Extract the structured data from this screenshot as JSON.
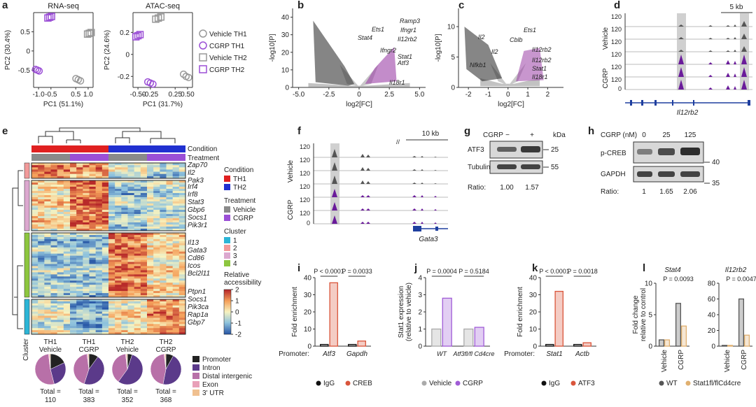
{
  "panel_letters": [
    "a",
    "b",
    "c",
    "d",
    "e",
    "f",
    "g",
    "h",
    "i",
    "j",
    "k",
    "l"
  ],
  "a": {
    "legend": [
      "Vehicle TH1",
      "CGRP TH1",
      "Vehicle TH2",
      "CGRP TH2"
    ],
    "markers": [
      {
        "shape": "circle",
        "color": "#999999"
      },
      {
        "shape": "circle",
        "color": "#9b4fd6"
      },
      {
        "shape": "square",
        "color": "#999999"
      },
      {
        "shape": "square",
        "color": "#9b4fd6"
      }
    ],
    "plots": [
      {
        "title": "RNA-seq",
        "xlabel": "PC1 (51.1%)",
        "ylabel": "PC2 (30.4%)",
        "xlim": [
          -1.2,
          1.2
        ],
        "ylim": [
          -0.95,
          1.0
        ],
        "xticks": [
          {
            "value": -1,
            "label": "-1.0"
          },
          -0.5,
          0.5,
          {
            "value": 1,
            "label": "1.0"
          }
        ],
        "yticks": [
          -0.5,
          0,
          0.5
        ],
        "groups": [
          {
            "x": [
              0.55,
              0.6,
              0.65
            ],
            "y": [
              -0.72,
              -0.75,
              -0.78
            ]
          },
          {
            "x": [
              -1.08,
              -1.05,
              -1.02
            ],
            "y": [
              -0.48,
              -0.5,
              -0.52
            ]
          },
          {
            "x": [
              1.02,
              1.05,
              1.08
            ],
            "y": [
              0.44,
              0.46,
              0.48
            ]
          },
          {
            "x": [
              -0.58,
              -0.55,
              -0.52
            ],
            "y": [
              0.86,
              0.88,
              0.9
            ]
          }
        ]
      },
      {
        "title": "ATAC-seq",
        "xlabel": "PC1 (31.7%)",
        "ylabel": "PC2 (24.6%)",
        "xlim": [
          -0.6,
          0.6
        ],
        "ylim": [
          -0.3,
          0.38
        ],
        "xticks": [
          {
            "value": -0.5,
            "label": "-0.50"
          },
          -0.25,
          0.25,
          {
            "value": 0.5,
            "label": "0.50"
          }
        ],
        "yticks": [
          -0.2,
          0,
          0.2
        ],
        "groups": [
          {
            "x": [
              0.44,
              0.47,
              0.5
            ],
            "y": [
              -0.18,
              -0.2,
              -0.21
            ]
          },
          {
            "x": [
              -0.28,
              -0.25,
              -0.22
            ],
            "y": [
              -0.25,
              -0.26,
              -0.27
            ]
          },
          {
            "x": [
              -0.12,
              -0.09,
              -0.06
            ],
            "y": [
              0.32,
              0.33,
              0.34
            ]
          },
          {
            "x": [
              -0.52,
              -0.5,
              -0.48
            ],
            "y": [
              0.16,
              0.17,
              0.18
            ]
          }
        ]
      }
    ]
  },
  "b": {
    "xlabel": "log2[FC]",
    "ylabel": "-log10[P]",
    "xlim": [
      -5.5,
      5.5
    ],
    "ylim": [
      0,
      45
    ],
    "xticks": [
      {
        "value": -5,
        "label": "-5.0"
      },
      -2.5,
      0,
      2.5,
      {
        "value": 5,
        "label": "5.0"
      }
    ],
    "yticks": [
      0,
      10,
      20,
      30,
      40
    ],
    "genes": [
      "Ramp3",
      "Ets1",
      "Ifngr1",
      "Stat4",
      "Il12rb2",
      "Ifngr2",
      "Stat1",
      "Atf3",
      "Il18r1"
    ]
  },
  "c": {
    "xlabel": "log2[FC]",
    "ylabel": "-log10[P]",
    "xlim": [
      -2.5,
      2.8
    ],
    "ylim": [
      0,
      13
    ],
    "xticks": [
      -2,
      -1,
      0,
      1,
      2
    ],
    "yticks": [
      0,
      5,
      10
    ],
    "genes": [
      "Il2",
      "Ets1",
      "Cblb",
      "Il2",
      "Nfkb1",
      "Il12rb2",
      "Il12rb2",
      "Stat1",
      "Il18r1"
    ]
  },
  "d": {
    "scale": "5 kb",
    "track_max": 120,
    "track_min": 0,
    "groups": [
      "Vehicle",
      "CGRP"
    ],
    "gene": "Il12rb2"
  },
  "e": {
    "bars": [
      "Condition",
      "Treatment"
    ],
    "genes": [
      [
        "Zap70",
        "Il2",
        "Pak3"
      ],
      [
        "Irf4",
        "Irf8",
        "Stat3",
        "Gbp6",
        "Socs1",
        "Pik3r1"
      ],
      [
        "Il13",
        "Gata3",
        "Cd86",
        "Icos",
        "Bcl2l11"
      ],
      [
        "Ptpn1",
        "Socs1",
        "Pik3ca",
        "Rap1a",
        "Gbp7"
      ]
    ],
    "condition_title": "Condition",
    "conditions": [
      {
        "name": "TH1",
        "color": "#e02020"
      },
      {
        "name": "TH2",
        "color": "#2030d0"
      }
    ],
    "treatment_title": "Treatment",
    "treatments": [
      {
        "name": "Vehicle",
        "color": "#8a8a8a"
      },
      {
        "name": "CGRP",
        "color": "#9b4fd6"
      }
    ],
    "cluster_title": "Cluster",
    "clusters": [
      {
        "name": "1",
        "color": "#2cb5d6"
      },
      {
        "name": "2",
        "color": "#f29a9a"
      },
      {
        "name": "3",
        "color": "#dca8cf"
      },
      {
        "name": "4",
        "color": "#8dc63f"
      }
    ],
    "colorbar_title": [
      "Relative",
      "accessibility"
    ],
    "colorbar_ticks": [
      2,
      1,
      0,
      -1,
      -2
    ],
    "columns": [
      [
        "TH1",
        "Vehicle"
      ],
      [
        "TH1",
        "CGRP"
      ],
      [
        "TH2",
        "Vehicle"
      ],
      [
        "TH2",
        "CGRP"
      ]
    ],
    "sidebar_label": "Cluster",
    "pie_legend": [
      {
        "name": "Promoter",
        "color": "#222222"
      },
      {
        "name": "Intron",
        "color": "#5b3a8a"
      },
      {
        "name": "Distal intergenic",
        "color": "#b870a8"
      },
      {
        "name": "Exon",
        "color": "#e8a0b8"
      },
      {
        "name": "3' UTR",
        "color": "#f0c090"
      }
    ],
    "pie_values": [
      [
        18,
        28,
        52,
        1,
        1
      ],
      [
        10,
        45,
        43,
        1,
        1
      ],
      [
        5,
        55,
        38,
        1,
        1
      ],
      [
        8,
        45,
        45,
        1,
        1
      ]
    ],
    "total_label": "Total =",
    "totals": [
      110,
      383,
      352,
      368
    ]
  },
  "f": {
    "scale": "10 kb",
    "track_max": 120,
    "track_min": 0,
    "groups": [
      "Vehicle",
      "CGRP"
    ],
    "gene": "Gata3"
  },
  "g": {
    "treatment": "CGRP",
    "lanes": [
      "−",
      "+"
    ],
    "unit": "kDa",
    "bands": [
      {
        "name": "ATF3",
        "marker": 25
      },
      {
        "name": "Tubulin",
        "marker": 55
      }
    ],
    "ratio_label": "Ratio:",
    "ratios": [
      "1.00",
      "1.57"
    ]
  },
  "h": {
    "treatment": "CGRP (nM)",
    "lanes": [
      0,
      25,
      125
    ],
    "bands": [
      {
        "name": "p-CREB",
        "marker": 40
      },
      {
        "name": "GAPDH",
        "marker": 35
      }
    ],
    "ratio_label": "Ratio:",
    "ratios": [
      "1",
      "1.65",
      "2.06"
    ]
  },
  "i": {
    "ylabel": "Fold enrichment",
    "ylim": [
      0,
      40
    ],
    "yticks": [
      0,
      10,
      20,
      30,
      40
    ],
    "prefix": "Promoter:",
    "categories": [
      "Atf3",
      "Gapdh"
    ],
    "series": [
      {
        "name": "IgG",
        "color": "#111111",
        "values": [
          1,
          1
        ]
      },
      {
        "name": "CREB",
        "color": "#d9553b",
        "values": [
          37,
          3
        ]
      }
    ],
    "pvalues": [
      "P < 0.0001",
      "P = 0.0033"
    ]
  },
  "j": {
    "ylabel": [
      "Stat1 expression",
      "(relative to vehicle)"
    ],
    "ylim": [
      0,
      4
    ],
    "yticks": [
      0,
      1,
      2,
      3,
      4
    ],
    "categories": [
      "WT",
      "Atf3fl/fl Cd4cre"
    ],
    "series": [
      {
        "name": "Vehicle",
        "color": "#aaaaaa",
        "values": [
          1,
          1
        ]
      },
      {
        "name": "CGRP",
        "color": "#a05cd6",
        "values": [
          2.8,
          1.1
        ]
      }
    ],
    "pvalues": [
      "P = 0.0004",
      "P = 0.5184"
    ]
  },
  "k": {
    "ylabel": "Fold enrichment",
    "ylim": [
      0,
      40
    ],
    "yticks": [
      0,
      10,
      20,
      30,
      40
    ],
    "prefix": "Promoter:",
    "categories": [
      "Stat1",
      "Actb"
    ],
    "series": [
      {
        "name": "IgG",
        "color": "#111111",
        "values": [
          1,
          1
        ]
      },
      {
        "name": "ATF3",
        "color": "#d9553b",
        "values": [
          32,
          2
        ]
      }
    ],
    "pvalues": [
      "P < 0.0001",
      "P = 0.0018"
    ]
  },
  "l": {
    "ylabel": [
      "Fold change",
      "relative to control"
    ],
    "legend": [
      {
        "name": "WT",
        "color": "#555555"
      },
      {
        "name": "Stat1fl/flCd4cre",
        "color": "#e0b070"
      }
    ],
    "plots": [
      {
        "title": "Stat4",
        "ylim": [
          0,
          10
        ],
        "yticks": [
          0,
          5,
          10
        ],
        "categories": [
          "Vehicle",
          "CGRP"
        ],
        "values": [
          [
            1,
            6.8
          ],
          [
            1,
            3.2
          ]
        ],
        "pvalue": "P = 0.0093"
      },
      {
        "title": "Il12rb2",
        "ylim": [
          0,
          80
        ],
        "yticks": [
          0,
          20,
          40,
          60,
          80
        ],
        "categories": [
          "Vehicle",
          "CGRP"
        ],
        "values": [
          [
            1,
            60
          ],
          [
            1,
            14
          ]
        ],
        "pvalue": "P = 0.0047"
      }
    ]
  }
}
